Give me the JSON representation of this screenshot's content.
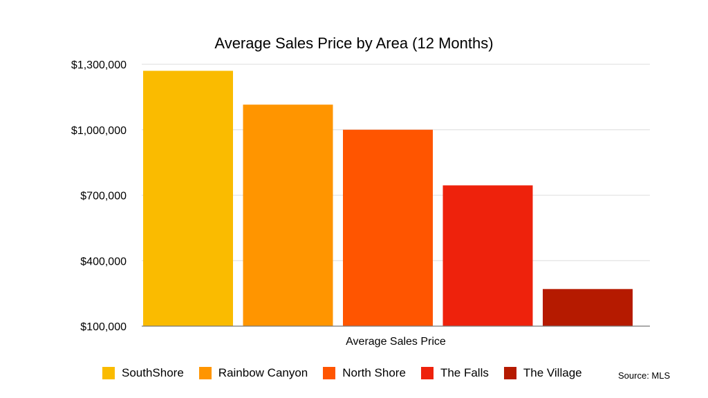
{
  "chart_data": {
    "type": "bar",
    "title": "Average Sales Price by Area (12 Months)",
    "xlabel": "Average Sales Price",
    "ylabel": "",
    "categories": [
      "Average Sales Price"
    ],
    "series": [
      {
        "name": "SouthShore",
        "values": [
          1270000
        ],
        "color": "#FABB00"
      },
      {
        "name": "Rainbow Canyon",
        "values": [
          1115000
        ],
        "color": "#FF9500"
      },
      {
        "name": "North Shore",
        "values": [
          1000000
        ],
        "color": "#FF5500"
      },
      {
        "name": "The Falls",
        "values": [
          745000
        ],
        "color": "#EE220C"
      },
      {
        "name": "The Village",
        "values": [
          270000
        ],
        "color": "#B51A00"
      }
    ],
    "ylim": [
      100000,
      1300000
    ],
    "yticks": [
      100000,
      400000,
      700000,
      1000000,
      1300000
    ],
    "ytick_labels": [
      "$100,000",
      "$400,000",
      "$700,000",
      "$1,000,000",
      "$1,300,000"
    ],
    "grid": true,
    "legend_position": "bottom",
    "annotation": "Source: MLS"
  }
}
